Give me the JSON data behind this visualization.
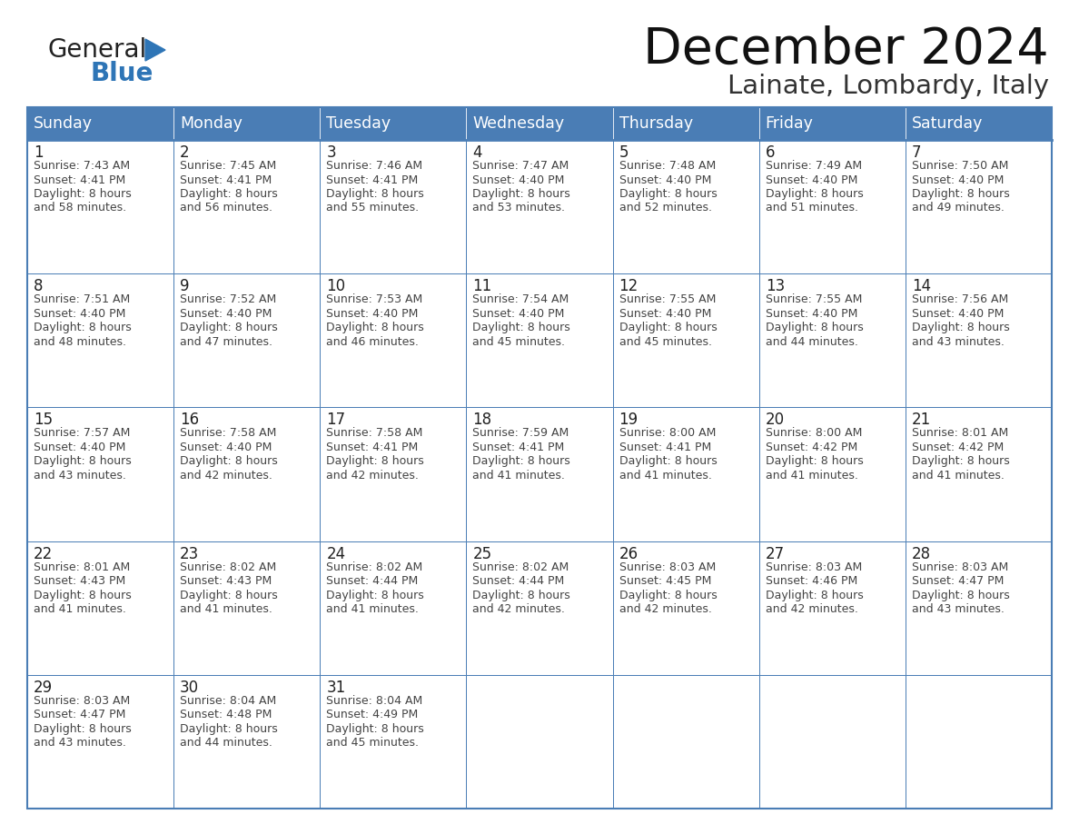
{
  "title": "December 2024",
  "subtitle": "Lainate, Lombardy, Italy",
  "header_bg_color": "#4A7DB5",
  "header_text_color": "#FFFFFF",
  "border_color": "#4A7DB5",
  "text_color": "#444444",
  "day_number_color": "#333333",
  "days_of_week": [
    "Sunday",
    "Monday",
    "Tuesday",
    "Wednesday",
    "Thursday",
    "Friday",
    "Saturday"
  ],
  "logo_general_color": "#222222",
  "logo_blue_color": "#2E75B6",
  "calendar_data": [
    [
      {
        "day": "1",
        "sunrise": "7:43 AM",
        "sunset": "4:41 PM",
        "daylight_h": "8 hours",
        "daylight_m": "and 58 minutes."
      },
      {
        "day": "2",
        "sunrise": "7:45 AM",
        "sunset": "4:41 PM",
        "daylight_h": "8 hours",
        "daylight_m": "and 56 minutes."
      },
      {
        "day": "3",
        "sunrise": "7:46 AM",
        "sunset": "4:41 PM",
        "daylight_h": "8 hours",
        "daylight_m": "and 55 minutes."
      },
      {
        "day": "4",
        "sunrise": "7:47 AM",
        "sunset": "4:40 PM",
        "daylight_h": "8 hours",
        "daylight_m": "and 53 minutes."
      },
      {
        "day": "5",
        "sunrise": "7:48 AM",
        "sunset": "4:40 PM",
        "daylight_h": "8 hours",
        "daylight_m": "and 52 minutes."
      },
      {
        "day": "6",
        "sunrise": "7:49 AM",
        "sunset": "4:40 PM",
        "daylight_h": "8 hours",
        "daylight_m": "and 51 minutes."
      },
      {
        "day": "7",
        "sunrise": "7:50 AM",
        "sunset": "4:40 PM",
        "daylight_h": "8 hours",
        "daylight_m": "and 49 minutes."
      }
    ],
    [
      {
        "day": "8",
        "sunrise": "7:51 AM",
        "sunset": "4:40 PM",
        "daylight_h": "8 hours",
        "daylight_m": "and 48 minutes."
      },
      {
        "day": "9",
        "sunrise": "7:52 AM",
        "sunset": "4:40 PM",
        "daylight_h": "8 hours",
        "daylight_m": "and 47 minutes."
      },
      {
        "day": "10",
        "sunrise": "7:53 AM",
        "sunset": "4:40 PM",
        "daylight_h": "8 hours",
        "daylight_m": "and 46 minutes."
      },
      {
        "day": "11",
        "sunrise": "7:54 AM",
        "sunset": "4:40 PM",
        "daylight_h": "8 hours",
        "daylight_m": "and 45 minutes."
      },
      {
        "day": "12",
        "sunrise": "7:55 AM",
        "sunset": "4:40 PM",
        "daylight_h": "8 hours",
        "daylight_m": "and 45 minutes."
      },
      {
        "day": "13",
        "sunrise": "7:55 AM",
        "sunset": "4:40 PM",
        "daylight_h": "8 hours",
        "daylight_m": "and 44 minutes."
      },
      {
        "day": "14",
        "sunrise": "7:56 AM",
        "sunset": "4:40 PM",
        "daylight_h": "8 hours",
        "daylight_m": "and 43 minutes."
      }
    ],
    [
      {
        "day": "15",
        "sunrise": "7:57 AM",
        "sunset": "4:40 PM",
        "daylight_h": "8 hours",
        "daylight_m": "and 43 minutes."
      },
      {
        "day": "16",
        "sunrise": "7:58 AM",
        "sunset": "4:40 PM",
        "daylight_h": "8 hours",
        "daylight_m": "and 42 minutes."
      },
      {
        "day": "17",
        "sunrise": "7:58 AM",
        "sunset": "4:41 PM",
        "daylight_h": "8 hours",
        "daylight_m": "and 42 minutes."
      },
      {
        "day": "18",
        "sunrise": "7:59 AM",
        "sunset": "4:41 PM",
        "daylight_h": "8 hours",
        "daylight_m": "and 41 minutes."
      },
      {
        "day": "19",
        "sunrise": "8:00 AM",
        "sunset": "4:41 PM",
        "daylight_h": "8 hours",
        "daylight_m": "and 41 minutes."
      },
      {
        "day": "20",
        "sunrise": "8:00 AM",
        "sunset": "4:42 PM",
        "daylight_h": "8 hours",
        "daylight_m": "and 41 minutes."
      },
      {
        "day": "21",
        "sunrise": "8:01 AM",
        "sunset": "4:42 PM",
        "daylight_h": "8 hours",
        "daylight_m": "and 41 minutes."
      }
    ],
    [
      {
        "day": "22",
        "sunrise": "8:01 AM",
        "sunset": "4:43 PM",
        "daylight_h": "8 hours",
        "daylight_m": "and 41 minutes."
      },
      {
        "day": "23",
        "sunrise": "8:02 AM",
        "sunset": "4:43 PM",
        "daylight_h": "8 hours",
        "daylight_m": "and 41 minutes."
      },
      {
        "day": "24",
        "sunrise": "8:02 AM",
        "sunset": "4:44 PM",
        "daylight_h": "8 hours",
        "daylight_m": "and 41 minutes."
      },
      {
        "day": "25",
        "sunrise": "8:02 AM",
        "sunset": "4:44 PM",
        "daylight_h": "8 hours",
        "daylight_m": "and 42 minutes."
      },
      {
        "day": "26",
        "sunrise": "8:03 AM",
        "sunset": "4:45 PM",
        "daylight_h": "8 hours",
        "daylight_m": "and 42 minutes."
      },
      {
        "day": "27",
        "sunrise": "8:03 AM",
        "sunset": "4:46 PM",
        "daylight_h": "8 hours",
        "daylight_m": "and 42 minutes."
      },
      {
        "day": "28",
        "sunrise": "8:03 AM",
        "sunset": "4:47 PM",
        "daylight_h": "8 hours",
        "daylight_m": "and 43 minutes."
      }
    ],
    [
      {
        "day": "29",
        "sunrise": "8:03 AM",
        "sunset": "4:47 PM",
        "daylight_h": "8 hours",
        "daylight_m": "and 43 minutes."
      },
      {
        "day": "30",
        "sunrise": "8:04 AM",
        "sunset": "4:48 PM",
        "daylight_h": "8 hours",
        "daylight_m": "and 44 minutes."
      },
      {
        "day": "31",
        "sunrise": "8:04 AM",
        "sunset": "4:49 PM",
        "daylight_h": "8 hours",
        "daylight_m": "and 45 minutes."
      },
      null,
      null,
      null,
      null
    ]
  ],
  "fig_width": 11.88,
  "fig_height": 9.18,
  "dpi": 100
}
